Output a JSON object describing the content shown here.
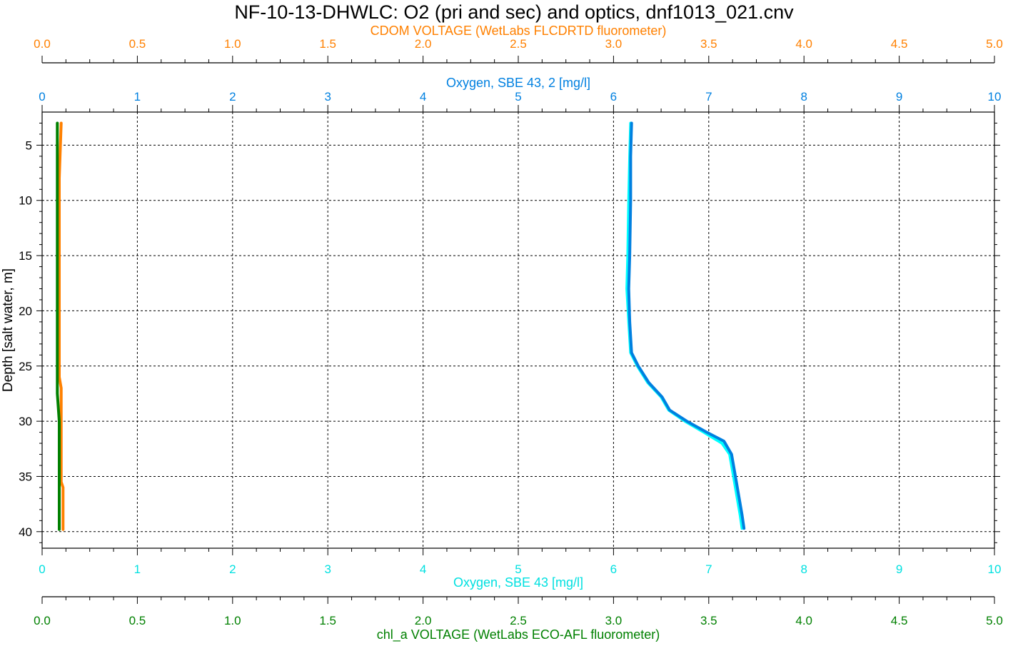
{
  "chart_data": {
    "type": "line",
    "title": "NF-10-13-DHWLC: O2 (pri and sec) and optics, dnf1013_021.cnv",
    "y_axis": {
      "label": "Depth [salt water, m]",
      "range": [
        2,
        41.5
      ],
      "inverted": true,
      "ticks": [
        5,
        10,
        15,
        20,
        25,
        30,
        35,
        40
      ]
    },
    "x_axes": [
      {
        "id": "cdom",
        "position": "top-outer",
        "label": "CDOM VOLTAGE (WetLabs FLCDRTD fluorometer)",
        "color": "#ff8000",
        "range": [
          0,
          5
        ],
        "ticks": [
          "0.0",
          "0.5",
          "1.0",
          "1.5",
          "2.0",
          "2.5",
          "3.0",
          "3.5",
          "4.0",
          "4.5",
          "5.0"
        ]
      },
      {
        "id": "oxy2",
        "position": "top-inner",
        "label": "Oxygen, SBE 43, 2 [mg/l]",
        "color": "#0080e0",
        "range": [
          0,
          10
        ],
        "ticks": [
          "0",
          "1",
          "2",
          "3",
          "4",
          "5",
          "6",
          "7",
          "8",
          "9",
          "10"
        ]
      },
      {
        "id": "oxy1",
        "position": "bottom-inner",
        "label": "Oxygen, SBE 43 [mg/l]",
        "color": "#00e0e0",
        "range": [
          0,
          10
        ],
        "ticks": [
          "0",
          "1",
          "2",
          "3",
          "4",
          "5",
          "6",
          "7",
          "8",
          "9",
          "10"
        ]
      },
      {
        "id": "chl",
        "position": "bottom-outer",
        "label": "chl_a VOLTAGE (WetLabs ECO-AFL fluorometer)",
        "color": "#008000",
        "range": [
          0,
          5
        ],
        "ticks": [
          "0.0",
          "0.5",
          "1.0",
          "1.5",
          "2.0",
          "2.5",
          "3.0",
          "3.5",
          "4.0",
          "4.5",
          "5.0"
        ]
      }
    ],
    "grid": true,
    "series": [
      {
        "name": "Oxygen, SBE 43 [mg/l]",
        "axis": "oxy1",
        "color": "#00ffff",
        "points": [
          [
            6.18,
            3.0
          ],
          [
            6.17,
            6.0
          ],
          [
            6.16,
            10.0
          ],
          [
            6.15,
            15.0
          ],
          [
            6.14,
            18.0
          ],
          [
            6.16,
            21.0
          ],
          [
            6.18,
            23.8
          ],
          [
            6.25,
            25.0
          ],
          [
            6.36,
            26.5
          ],
          [
            6.5,
            27.8
          ],
          [
            6.58,
            29.0
          ],
          [
            6.75,
            30.0
          ],
          [
            6.95,
            31.0
          ],
          [
            7.14,
            32.0
          ],
          [
            7.22,
            33.0
          ],
          [
            7.26,
            35.0
          ],
          [
            7.3,
            37.0
          ],
          [
            7.33,
            38.5
          ],
          [
            7.35,
            39.7
          ]
        ]
      },
      {
        "name": "Oxygen, SBE 43, 2 [mg/l]",
        "axis": "oxy2",
        "color": "#0080e0",
        "points": [
          [
            6.19,
            3.0
          ],
          [
            6.18,
            6.0
          ],
          [
            6.18,
            10.0
          ],
          [
            6.17,
            15.0
          ],
          [
            6.16,
            18.0
          ],
          [
            6.17,
            21.0
          ],
          [
            6.19,
            23.8
          ],
          [
            6.26,
            25.0
          ],
          [
            6.37,
            26.5
          ],
          [
            6.51,
            27.8
          ],
          [
            6.59,
            29.0
          ],
          [
            6.77,
            30.0
          ],
          [
            6.98,
            31.0
          ],
          [
            7.16,
            31.8
          ],
          [
            7.24,
            33.0
          ],
          [
            7.28,
            35.0
          ],
          [
            7.32,
            37.0
          ],
          [
            7.35,
            38.5
          ],
          [
            7.37,
            39.7
          ]
        ]
      },
      {
        "name": "CDOM VOLTAGE (WetLabs FLCDRTD fluorometer)",
        "axis": "cdom",
        "color": "#ff8000",
        "points": [
          [
            0.1,
            3.0
          ],
          [
            0.09,
            8.0
          ],
          [
            0.09,
            15.0
          ],
          [
            0.09,
            22.0
          ],
          [
            0.09,
            26.0
          ],
          [
            0.1,
            27.0
          ],
          [
            0.1,
            30.0
          ],
          [
            0.1,
            33.0
          ],
          [
            0.1,
            35.5
          ],
          [
            0.11,
            36.0
          ],
          [
            0.11,
            39.8
          ]
        ]
      },
      {
        "name": "chl_a VOLTAGE (WetLabs ECO-AFL fluorometer)",
        "axis": "chl",
        "color": "#008000",
        "points": [
          [
            0.08,
            3.0
          ],
          [
            0.08,
            10.0
          ],
          [
            0.08,
            20.0
          ],
          [
            0.08,
            27.5
          ],
          [
            0.09,
            30.0
          ],
          [
            0.09,
            35.0
          ],
          [
            0.09,
            38.0
          ],
          [
            0.09,
            39.8
          ]
        ]
      }
    ]
  }
}
